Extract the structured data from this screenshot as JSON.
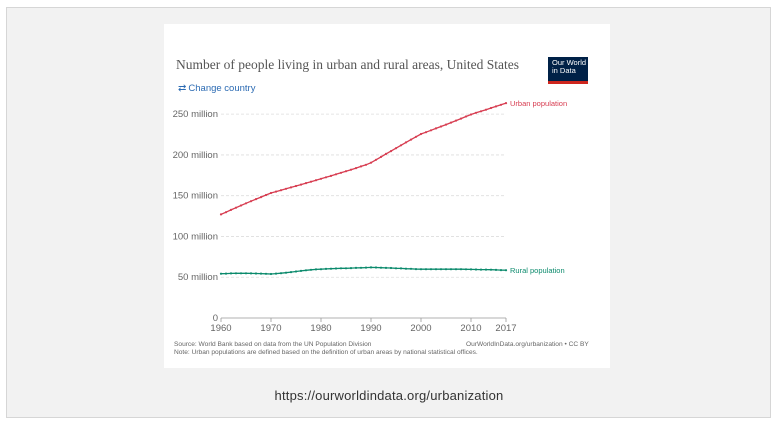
{
  "chart_data": {
    "type": "line",
    "title": "Number of people living in urban and rural areas, United States",
    "xlabel": "",
    "ylabel": "",
    "xlim": [
      1960,
      2017
    ],
    "ylim": [
      0,
      260000000
    ],
    "y_ticks": [
      0,
      50000000,
      100000000,
      150000000,
      200000000,
      250000000
    ],
    "y_tick_labels": [
      "0",
      "50 million",
      "100 million",
      "150 million",
      "200 million",
      "250 million"
    ],
    "x_ticks": [
      1960,
      1970,
      1980,
      1990,
      2000,
      2010,
      2017
    ],
    "x_tick_labels": [
      "1960",
      "1970",
      "1980",
      "1990",
      "2000",
      "2010",
      "2017"
    ],
    "x": [
      1960,
      1961,
      1962,
      1963,
      1964,
      1965,
      1966,
      1967,
      1968,
      1969,
      1970,
      1971,
      1972,
      1973,
      1974,
      1975,
      1976,
      1977,
      1978,
      1979,
      1980,
      1981,
      1982,
      1983,
      1984,
      1985,
      1986,
      1987,
      1988,
      1989,
      1990,
      1991,
      1992,
      1993,
      1994,
      1995,
      1996,
      1997,
      1998,
      1999,
      2000,
      2001,
      2002,
      2003,
      2004,
      2005,
      2006,
      2007,
      2008,
      2009,
      2010,
      2011,
      2012,
      2013,
      2014,
      2015,
      2016,
      2017
    ],
    "series": [
      {
        "name": "Urban population",
        "color": "#d73c50",
        "values": [
          127000000,
          129800000,
          132600000,
          135300000,
          138000000,
          140700000,
          143300000,
          145800000,
          148300000,
          150800000,
          153300000,
          155000000,
          156700000,
          158500000,
          160200000,
          161900000,
          163600000,
          165400000,
          167200000,
          169000000,
          170700000,
          172500000,
          174300000,
          176200000,
          178100000,
          180000000,
          181900000,
          183900000,
          185900000,
          187900000,
          190500000,
          194000000,
          197600000,
          201200000,
          204700000,
          208200000,
          211800000,
          215300000,
          218800000,
          222200000,
          225600000,
          227900000,
          230200000,
          232500000,
          234800000,
          237200000,
          239600000,
          242100000,
          244600000,
          247100000,
          249600000,
          251600000,
          253500000,
          255500000,
          257500000,
          259500000,
          261500000,
          263500000
        ]
      },
      {
        "name": "Rural population",
        "color": "#0b8a6c",
        "values": [
          54300000,
          54500000,
          54700000,
          54800000,
          54800000,
          54800000,
          54700000,
          54600000,
          54400000,
          54200000,
          54000000,
          54400000,
          55000000,
          55600000,
          56300000,
          57000000,
          57800000,
          58500000,
          59100000,
          59600000,
          59900000,
          60200000,
          60500000,
          60700000,
          60900000,
          61000000,
          61200000,
          61400000,
          61600000,
          61800000,
          62000000,
          61900000,
          61700000,
          61500000,
          61300000,
          61000000,
          60800000,
          60500000,
          60300000,
          60000000,
          59800000,
          59800000,
          59800000,
          59800000,
          59800000,
          59800000,
          59800000,
          59800000,
          59800000,
          59700000,
          59600000,
          59500000,
          59400000,
          59300000,
          59200000,
          59000000,
          58800000,
          58600000
        ]
      }
    ],
    "legend": "inline-right-of-lines",
    "grid": "horizontal dashed"
  },
  "header": {
    "title": "Number of people living in urban and rural areas, United States",
    "logo_line1": "Our World",
    "logo_line2": "in Data",
    "change_country": "Change country"
  },
  "footer": {
    "source": "Source: World Bank based on data from the UN Population Division",
    "note": "Note: Urban populations are defined based on the definition of urban areas by national statistical offices.",
    "credit": "OurWorldInData.org/urbanization • CC BY"
  },
  "caption": "https://ourworldindata.org/urbanization",
  "colors": {
    "urban": "#d73c50",
    "rural": "#0b8a6c",
    "logo_bg": "#002147",
    "logo_bar": "#ce261e",
    "link": "#2c6bb3"
  }
}
